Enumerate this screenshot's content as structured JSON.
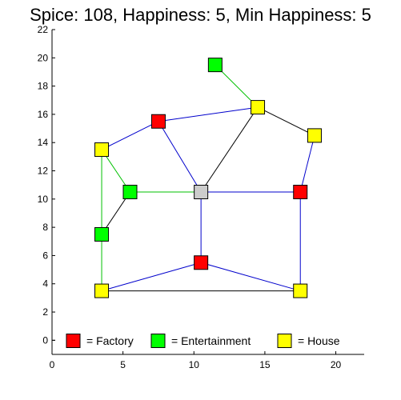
{
  "title": "Spice: 108, Happiness: 5, Min Happiness: 5",
  "colors": {
    "factory": "#ff0000",
    "entertainment": "#00ff00",
    "house": "#ffff00",
    "center": "#cccccc",
    "edge_blue": "#0000cc",
    "edge_green": "#00c000",
    "edge_black": "#000000"
  },
  "axes": {
    "xlim": [
      0,
      22
    ],
    "ylim": [
      -1,
      22
    ],
    "xticks": [
      0,
      5,
      10,
      15,
      20
    ],
    "yticks": [
      0,
      2,
      4,
      6,
      8,
      10,
      12,
      14,
      16,
      18,
      20,
      22
    ]
  },
  "nodes": [
    {
      "id": "factory-1",
      "type": "factory",
      "x": 7.5,
      "y": 15.5
    },
    {
      "id": "factory-2",
      "type": "factory",
      "x": 17.5,
      "y": 10.5
    },
    {
      "id": "factory-3",
      "type": "factory",
      "x": 10.5,
      "y": 5.5
    },
    {
      "id": "entertainment-1",
      "type": "entertainment",
      "x": 11.5,
      "y": 19.5
    },
    {
      "id": "entertainment-2",
      "type": "entertainment",
      "x": 5.5,
      "y": 10.5
    },
    {
      "id": "entertainment-3",
      "type": "entertainment",
      "x": 3.5,
      "y": 7.5
    },
    {
      "id": "house-1",
      "type": "house",
      "x": 14.5,
      "y": 16.5
    },
    {
      "id": "house-2",
      "type": "house",
      "x": 18.5,
      "y": 14.5
    },
    {
      "id": "house-3",
      "type": "house",
      "x": 3.5,
      "y": 13.5
    },
    {
      "id": "house-4",
      "type": "house",
      "x": 3.5,
      "y": 3.5
    },
    {
      "id": "house-5",
      "type": "house",
      "x": 17.5,
      "y": 3.5
    },
    {
      "id": "center",
      "type": "center",
      "x": 10.5,
      "y": 10.5
    }
  ],
  "edges": [
    {
      "from": "entertainment-1",
      "to": "house-1",
      "color": "edge_green"
    },
    {
      "from": "factory-1",
      "to": "house-1",
      "color": "edge_blue"
    },
    {
      "from": "house-3",
      "to": "factory-1",
      "color": "edge_blue"
    },
    {
      "from": "factory-1",
      "to": "center",
      "color": "edge_blue"
    },
    {
      "from": "house-1",
      "to": "center",
      "color": "edge_black"
    },
    {
      "from": "house-1",
      "to": "house-2",
      "color": "edge_black"
    },
    {
      "from": "house-2",
      "to": "factory-2",
      "color": "edge_blue"
    },
    {
      "from": "house-3",
      "to": "entertainment-2",
      "color": "edge_green"
    },
    {
      "from": "house-3",
      "to": "entertainment-3",
      "color": "edge_green"
    },
    {
      "from": "entertainment-2",
      "to": "center",
      "color": "edge_green"
    },
    {
      "from": "entertainment-2",
      "to": "entertainment-3",
      "color": "edge_black"
    },
    {
      "from": "center",
      "to": "factory-2",
      "color": "edge_blue"
    },
    {
      "from": "center",
      "to": "factory-3",
      "color": "edge_blue"
    },
    {
      "from": "entertainment-3",
      "to": "house-4",
      "color": "edge_green"
    },
    {
      "from": "house-4",
      "to": "factory-3",
      "color": "edge_blue"
    },
    {
      "from": "factory-3",
      "to": "house-5",
      "color": "edge_blue"
    },
    {
      "from": "factory-2",
      "to": "house-5",
      "color": "edge_blue"
    },
    {
      "from": "house-4",
      "to": "house-5",
      "color": "edge_black"
    }
  ],
  "legend": [
    {
      "type": "factory",
      "label": "= Factory"
    },
    {
      "type": "entertainment",
      "label": "= Entertainment"
    },
    {
      "type": "house",
      "label": "= House"
    }
  ]
}
